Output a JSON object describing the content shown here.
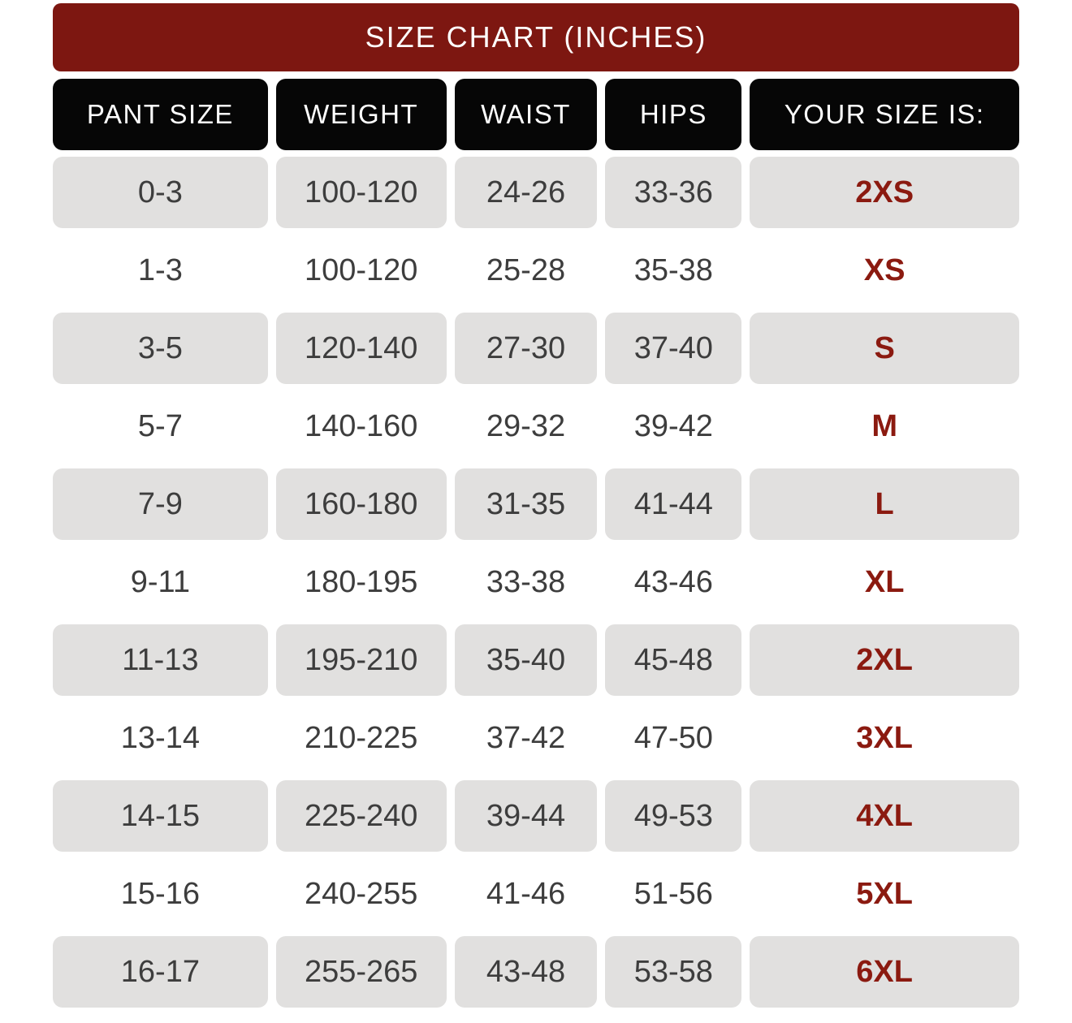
{
  "chart_data": {
    "type": "table",
    "title": "SIZE CHART (INCHES)",
    "columns": [
      "PANT SIZE",
      "WEIGHT",
      "WAIST",
      "HIPS",
      "YOUR SIZE IS:"
    ],
    "rows": [
      [
        "0-3",
        "100-120",
        "24-26",
        "33-36",
        "2XS"
      ],
      [
        "1-3",
        "100-120",
        "25-28",
        "35-38",
        "XS"
      ],
      [
        "3-5",
        "120-140",
        "27-30",
        "37-40",
        "S"
      ],
      [
        "5-7",
        "140-160",
        "29-32",
        "39-42",
        "M"
      ],
      [
        "7-9",
        "160-180",
        "31-35",
        "41-44",
        "L"
      ],
      [
        "9-11",
        "180-195",
        "33-38",
        "43-46",
        "XL"
      ],
      [
        "11-13",
        "195-210",
        "35-40",
        "45-48",
        "2XL"
      ],
      [
        "13-14",
        "210-225",
        "37-42",
        "47-50",
        "3XL"
      ],
      [
        "14-15",
        "225-240",
        "39-44",
        "49-53",
        "4XL"
      ],
      [
        "15-16",
        "240-255",
        "41-46",
        "51-56",
        "5XL"
      ],
      [
        "16-17",
        "255-265",
        "43-48",
        "53-58",
        "6XL"
      ]
    ],
    "layout": {
      "shaded_rows": "odd",
      "row_units": "inches"
    }
  },
  "colors": {
    "banner_red": "#7D1711",
    "header_black": "#060606",
    "cell_gray": "#E1E0DF",
    "size_red": "#8B1A10",
    "body_text": "#3D3D3D"
  }
}
